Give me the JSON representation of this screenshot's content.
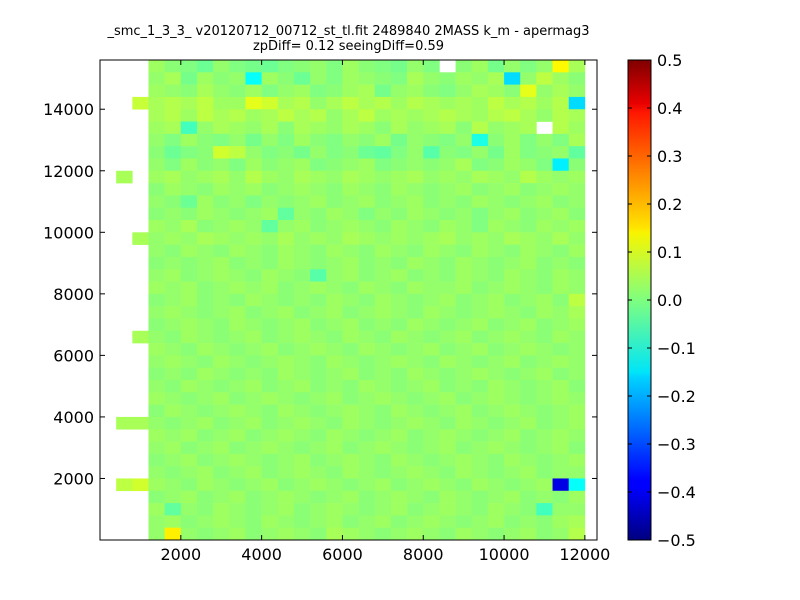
{
  "chart_data": {
    "type": "heatmap",
    "title": "_smc_1_3_3_ v20120712_00712_st_tl.fit 2489840 2MASS k_m - apermag3",
    "subtitle": "zpDiff= 0.12 seeingDiff=0.59",
    "xlabel": "",
    "ylabel": "",
    "xlim": [
      0,
      12300
    ],
    "ylim": [
      0,
      15600
    ],
    "x_ticks": [
      "2000",
      "4000",
      "6000",
      "8000",
      "10000",
      "12000"
    ],
    "y_ticks": [
      "2000",
      "4000",
      "6000",
      "8000",
      "10000",
      "12000",
      "14000"
    ],
    "colorbar": {
      "colormap": "jet",
      "range": [
        -0.5,
        0.5
      ],
      "ticks": [
        "0.5",
        "0.4",
        "0.3",
        "0.2",
        "0.1",
        "0.0",
        "−0.1",
        "−0.2",
        "−0.3",
        "−0.4",
        "−0.5"
      ]
    },
    "grid": false,
    "x_edges": [
      400,
      800,
      1200,
      1600,
      2000,
      2400,
      2800,
      3200,
      3600,
      4000,
      4400,
      4800,
      5200,
      5600,
      6000,
      6400,
      6800,
      7200,
      7600,
      8000,
      8400,
      8800,
      9200,
      9600,
      10000,
      10400,
      10800,
      11200,
      11600,
      12000,
      12400
    ],
    "y_edges": [
      0,
      400,
      800,
      1200,
      1600,
      2000,
      2400,
      2800,
      3200,
      3600,
      4000,
      4400,
      4800,
      5200,
      5600,
      6000,
      6400,
      6800,
      7200,
      7600,
      8000,
      8400,
      8800,
      9200,
      9600,
      10000,
      10400,
      10800,
      11200,
      11600,
      12000,
      12400,
      12800,
      13200,
      13600,
      14000,
      14400,
      14800,
      15200,
      15600
    ],
    "values_top_to_bottom": [
      "_,_,0.03,0.01,0,-0.02,0.02,0,-0.01,-0.02,0,0.01,0.02,0,0.03,0.01,0,-0.01,0.02,0,_,0.01,0.03,-0.01,0.02,0,0.02,0.13,0.04,_",
      "_,_,0.02,0.04,-0.01,0.03,0.01,0.02,-0.12,0.03,0.01,-0.02,0.02,0,0.03,0.02,0.01,0,0.04,0.02,0.01,0.03,0.02,0.04,-0.16,0.02,0.06,0.03,0.01,_",
      "_,_,0.03,0.02,0.01,0.04,0.02,0.01,0.03,0,0.02,0.03,0,0.01,0.03,0.04,-0.01,0.02,0.03,0.01,0,0.02,0.04,0.03,0.01,0.1,0.02,0.04,0.02,_",
      "_,0.07,0.04,0.05,0.04,0.06,0.03,0.03,0.1,0.08,0.04,0.05,0.02,0.04,0.06,0.04,0.05,0.03,0.05,0.04,0.03,0.04,0.03,0.06,0.04,0.05,0.03,0.05,-0.16,_",
      "_,_,0.04,0.05,0.03,0.06,0.04,0.05,0.03,0.04,0.06,0.04,0.05,0.02,0.04,0.06,0.03,0.04,0.03,0.04,0.05,0.04,0.03,0.05,0.06,0.04,0.02,0.05,0.04,_",
      "_,_,0.03,0.04,-0.06,0.02,0.04,0.03,0.02,0.04,0.01,0.04,0.03,0.02,0.04,0.03,0.01,0.04,0.02,0.03,0.04,0.01,0.05,0.02,0.03,0.04,_,0.05,0.03,_",
      "_,_,0.02,0,0.03,0.01,0,0.02,-0.01,0.02,0,0.03,0.01,0,0.02,0.01,0.03,-0.01,0.02,0.01,0,0.02,-0.1,0.01,0.03,0,0.02,0,0.04,_",
      "_,_,0.01,-0.02,0,0.01,0.08,0.06,0.02,0,0.01,-0.01,0.02,0,0.01,-0.02,-0.03,0,0.02,-0.04,0.01,0,0.02,-0.01,0.03,0,0.01,0.02,-0.03,_",
      "_,_,0.02,0,0.03,0.01,0.02,0,0.03,0.01,0.02,0.03,0,0.01,0.02,0.03,0,0.01,0.02,0.01,0.02,0.04,0,0.01,0.03,0.02,0,-0.14,0.01,_",
      "0.04,_,0.03,0.04,0.02,0.03,0.04,0.02,0.05,0.03,0.02,0.04,0.03,0.02,0.04,0.03,0.02,0.03,0.04,0.02,0.03,0.02,0.04,0.03,0.02,0.05,0.03,0.02,0.03,_",
      "_,_,0.01,0.03,0.02,0.01,0.03,0.02,0.03,0.01,0.02,0.03,0.02,0.01,0.03,0.02,0.01,0.03,0.02,0.01,0.02,0.03,0.01,0.02,0.03,0.01,0.02,0.03,0.02,_",
      "_,_,0.02,0.01,-0.02,0.03,0.01,0.02,0,0.02,0.01,0.02,0.03,0.01,0.02,0.03,0.01,0.02,0.03,0.01,0.02,0.01,0.03,0.02,0.01,0.02,0.03,0.01,0.02,_",
      "_,_,0.01,0.02,0.01,0.03,0.02,0.01,0.02,0.03,-0.03,0.02,0.01,0.03,0.02,0,0.02,0.01,0.03,0.02,0.01,0.02,0,0.02,0.03,0.01,0.02,0.03,0.01,_",
      "_,_,0.03,0.02,0.04,0.01,0.02,0.03,0.02,-0.03,0.02,0.03,0.01,0.02,0.03,0.02,0.01,0.03,0.02,0.01,0.03,0.02,0,0.03,0.02,0.01,0.03,0.02,0.03,_",
      "_,0.04,0.02,0.03,0.02,0.04,0.03,0.02,0.03,0.02,0.04,0.02,0.03,0.02,0.04,0.03,0.02,0.03,0.02,0.03,0.04,0.02,0.03,0.02,0.04,0.03,0.02,0.04,0.02,_",
      "_,_,0.02,0.01,0.03,0.02,0.01,0.03,0.02,0.01,0.03,0.02,0.01,0.03,0.02,0.01,0.03,0.02,0.01,0.03,0.02,0.01,0.03,0.02,0.01,0.03,0.02,0.01,0.03,_",
      "_,_,0.01,0.02,0.01,0.02,0.03,0.01,0.02,0.01,0.03,0.02,0.01,0.02,0.03,0.01,0.02,0.01,0.03,0.02,0.01,0.03,0.02,0.01,0.02,0.03,0.01,0.02,0.01,_",
      "_,_,0.02,0.03,0.01,0.02,0.03,0.02,0.01,0.03,0.02,0.01,-0.04,0.02,0.03,0.01,0.02,0.03,0.01,0.02,0.01,0.03,0.02,0.01,0.03,0.02,0.01,0.03,0.02,_",
      "_,_,0.03,0.02,0.03,0.01,0.02,0.03,0.02,0.03,0.01,0.02,0.03,0.02,0.01,0.03,0.02,0.01,0.03,0.02,0.02,0.03,0.01,0.02,0.03,0.02,0.01,0.03,0.02,_",
      "_,_,0.01,0.02,0.03,0.01,0.02,0.01,0.03,0.02,0.01,0.02,0.01,0.03,0.02,0.01,0.03,0.02,0.01,0.02,0.03,0.01,0.02,0.03,0.01,0.02,0.03,0.01,0.06,_",
      "_,_,0.02,0.03,0.02,0.01,0.02,0.03,0.01,0.02,0.03,0.01,0.02,0.03,0.01,0.02,0.03,0.02,0.01,0.03,0.02,0.01,0.02,0.03,0.02,0.01,0.03,0.02,0.04,_",
      "_,_,0.01,0.02,0.03,0.02,0.01,0.03,0.02,0.01,0.02,0.03,0.01,0.02,0.03,0.01,0.02,0.01,0.03,0.02,0.01,0.02,0.03,0.01,0.02,0.03,0.01,0.02,0.03,_",
      "_,0.04,0.02,0.01,0.03,0.02,0.01,0.02,0.03,0.01,0.02,0.03,0.02,0.01,0.03,0.02,0.01,0.03,0.02,0.01,0.02,0.03,0.01,0.02,0.03,0.02,0.01,0.03,0.02,_",
      "_,_,0.03,0.02,0.01,0.03,0.02,0.01,0.02,0.03,0.01,0.02,0.03,0.02,0.01,0.03,0.02,0.01,0.02,0.03,0.01,0.02,0.03,0.01,0.02,0.03,0.02,0.01,0.02,_",
      "_,_,0.02,0.03,0.02,0.01,0.03,0.02,0.01,0.02,0.03,0.02,0.01,0.03,0.02,0.01,0.02,0.03,0.02,0.01,0.03,0.02,0.01,0.02,0.03,0.01,0.02,0.03,0.02,_",
      "_,_,0.01,0.02,0.01,0.03,0.02,0.01,0.02,0.01,0.03,0.02,0.01,0.02,0.03,0.01,0.02,0.01,0.03,0.02,0.01,0.02,0.03,0.02,0.01,0.02,0.03,0.01,0.02,_",
      "_,_,0.02,0.01,0.03,0.02,0.01,0.02,0.03,0.01,0.02,0.03,0.01,0.02,0.01,0.03,0.02,0.01,0.02,0.03,0.01,0.02,0.01,0.03,0.02,0.01,0.02,0.03,0.01,_",
      "_,_,0.03,0.02,0.01,0.02,0.03,0.01,0.02,0.03,0.02,0.01,0.02,0.03,0.01,0.02,0.03,0.02,0.01,0.02,0.03,0.01,0.02,0.03,0.02,0.01,0.02,0.03,0.02,_",
      "_,_,0.01,0.03,0.02,0.01,0.02,0.03,0.02,0.01,0.03,0.02,0.01,0.02,0.03,0.02,0.01,0.03,0.02,0.01,0.02,0.03,0.01,0.02,0.03,0.02,0.01,0.02,0.03,_",
      "0.04,0.04,0.02,0.01,0.02,0.03,0.01,0.02,0.03,0.01,0.02,0.03,0.02,0.01,0.03,0.02,0.01,0.02,0.03,0.02,0.01,0.03,0.02,0.01,0.02,0.03,0.01,0.02,0.03,_",
      "_,_,0.03,0.02,0.03,0.01,0.02,0.03,0.01,0.02,0.03,0.02,0.01,0.03,0.02,0.01,0.02,0.03,0.01,0.02,0.03,0.02,0.01,0.02,0.03,0.01,0.02,0.03,0.02,_",
      "_,_,0.02,0.03,0.01,0.02,0.03,0.01,0.02,0.03,0.02,0.01,0.02,0.03,0.01,0.02,0.03,0.02,0.01,0.02,0.03,0.01,0.02,0.03,0.02,0.01,0.02,0.03,0.01,_",
      "_,_,0.01,0.02,0.03,0.01,0.02,0.03,0.02,0.01,0.02,0.03,0.01,0.02,0.03,0.02,0.01,0.03,0.02,0.01,0.02,0.03,0.02,0.01,0.03,0.02,0.01,0.02,0.03,_",
      "_,_,0.02,0.01,0.02,0.03,0.01,0.02,0.03,0.01,0.02,0.03,0.02,0.01,0.03,0.02,0.01,0.02,0.03,0.02,0.01,0.03,0.02,0.01,0.02,0.03,0.01,0.02,0.02,_",
      "0.06,0.08,0.03,0.02,0.01,0.03,0.02,0.01,0.02,0.03,0.01,0.02,0.03,0.02,0.01,0.02,0.03,0.01,0.02,0.03,0.02,0.01,0.03,0.02,0.01,0.02,0.03,-0.4,-0.12,_",
      "_,_,0.01,0.02,0.03,0.01,0.02,0.03,0.01,0.02,0.03,0.02,0.01,0.02,0.03,0.01,0.02,0.03,0.02,0.01,0.03,0.02,0.01,0.02,0.03,0.01,0.02,0.01,0.03,_",
      "_,_,0.03,-0.03,0.02,0.01,0.03,0.02,0.01,0.02,0.03,0.01,0.02,0.03,0.02,0.01,0.02,0.03,0.01,0.02,0.03,0.02,0.01,0.03,0.02,0.01,-0.06,0.02,0.02,_",
      "_,_,0.02,0.03,0.01,0.02,0.03,0.02,0.01,0.03,0.02,0.01,0.02,0.03,0.01,0.02,0.03,0.01,0.02,0.03,0.02,0.01,0.02,0.03,0.01,0.02,0.01,0.03,0.04,_",
      "_,_,0.02,0.14,0.02,0.01,0.02,0.03,0.01,0.02,0.03,0.02,0.01,0.04,0.03,0.02,0.01,0.02,0.03,0.02,0.01,0.03,0.02,0.01,0.02,0.03,0.01,0.02,0.05,_"
    ]
  }
}
